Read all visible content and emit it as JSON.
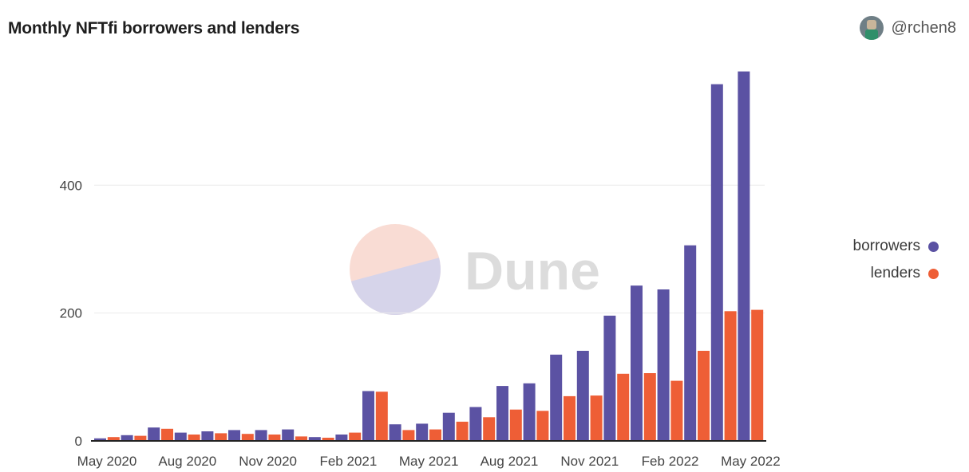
{
  "header": {
    "title": "Monthly NFTfi borrowers and lenders",
    "author": "@rchen8"
  },
  "watermark": {
    "text": "Dune",
    "colors": {
      "top": "#f9dcd4",
      "bottom": "#d6d4ea",
      "text": "#dcdcdc"
    }
  },
  "colors": {
    "borrowers": "#5b52a3",
    "lenders": "#ee5e36",
    "grid": "#ececec",
    "axis": "#222222"
  },
  "chart_data": {
    "type": "bar",
    "title": "Monthly NFTfi borrowers and lenders",
    "xlabel": "",
    "ylabel": "",
    "ylim": [
      0,
      580
    ],
    "yticks": [
      0,
      200,
      400
    ],
    "grid": true,
    "legend_position": "right",
    "x_tick_labels": [
      {
        "label": "May 2020",
        "index": 0
      },
      {
        "label": "Aug 2020",
        "index": 3
      },
      {
        "label": "Nov 2020",
        "index": 6
      },
      {
        "label": "Feb 2021",
        "index": 9
      },
      {
        "label": "May 2021",
        "index": 12
      },
      {
        "label": "Aug 2021",
        "index": 15
      },
      {
        "label": "Nov 2021",
        "index": 18
      },
      {
        "label": "Feb 2022",
        "index": 21
      },
      {
        "label": "May 2022",
        "index": 24
      }
    ],
    "categories": [
      "2020-05",
      "2020-06",
      "2020-07",
      "2020-08",
      "2020-09",
      "2020-10",
      "2020-11",
      "2020-12",
      "2021-01",
      "2021-02",
      "2021-03",
      "2021-04",
      "2021-05",
      "2021-06",
      "2021-07",
      "2021-08",
      "2021-09",
      "2021-10",
      "2021-11",
      "2021-12",
      "2022-01",
      "2022-02",
      "2022-03",
      "2022-04",
      "2022-05"
    ],
    "series": [
      {
        "name": "borrowers",
        "values": [
          4,
          9,
          21,
          13,
          15,
          17,
          17,
          18,
          6,
          10,
          78,
          26,
          27,
          44,
          53,
          86,
          90,
          135,
          141,
          196,
          243,
          237,
          306,
          558,
          578
        ]
      },
      {
        "name": "lenders",
        "values": [
          6,
          8,
          19,
          10,
          12,
          11,
          10,
          7,
          5,
          13,
          77,
          17,
          18,
          30,
          37,
          49,
          47,
          70,
          71,
          105,
          106,
          94,
          141,
          203,
          205
        ]
      }
    ]
  }
}
